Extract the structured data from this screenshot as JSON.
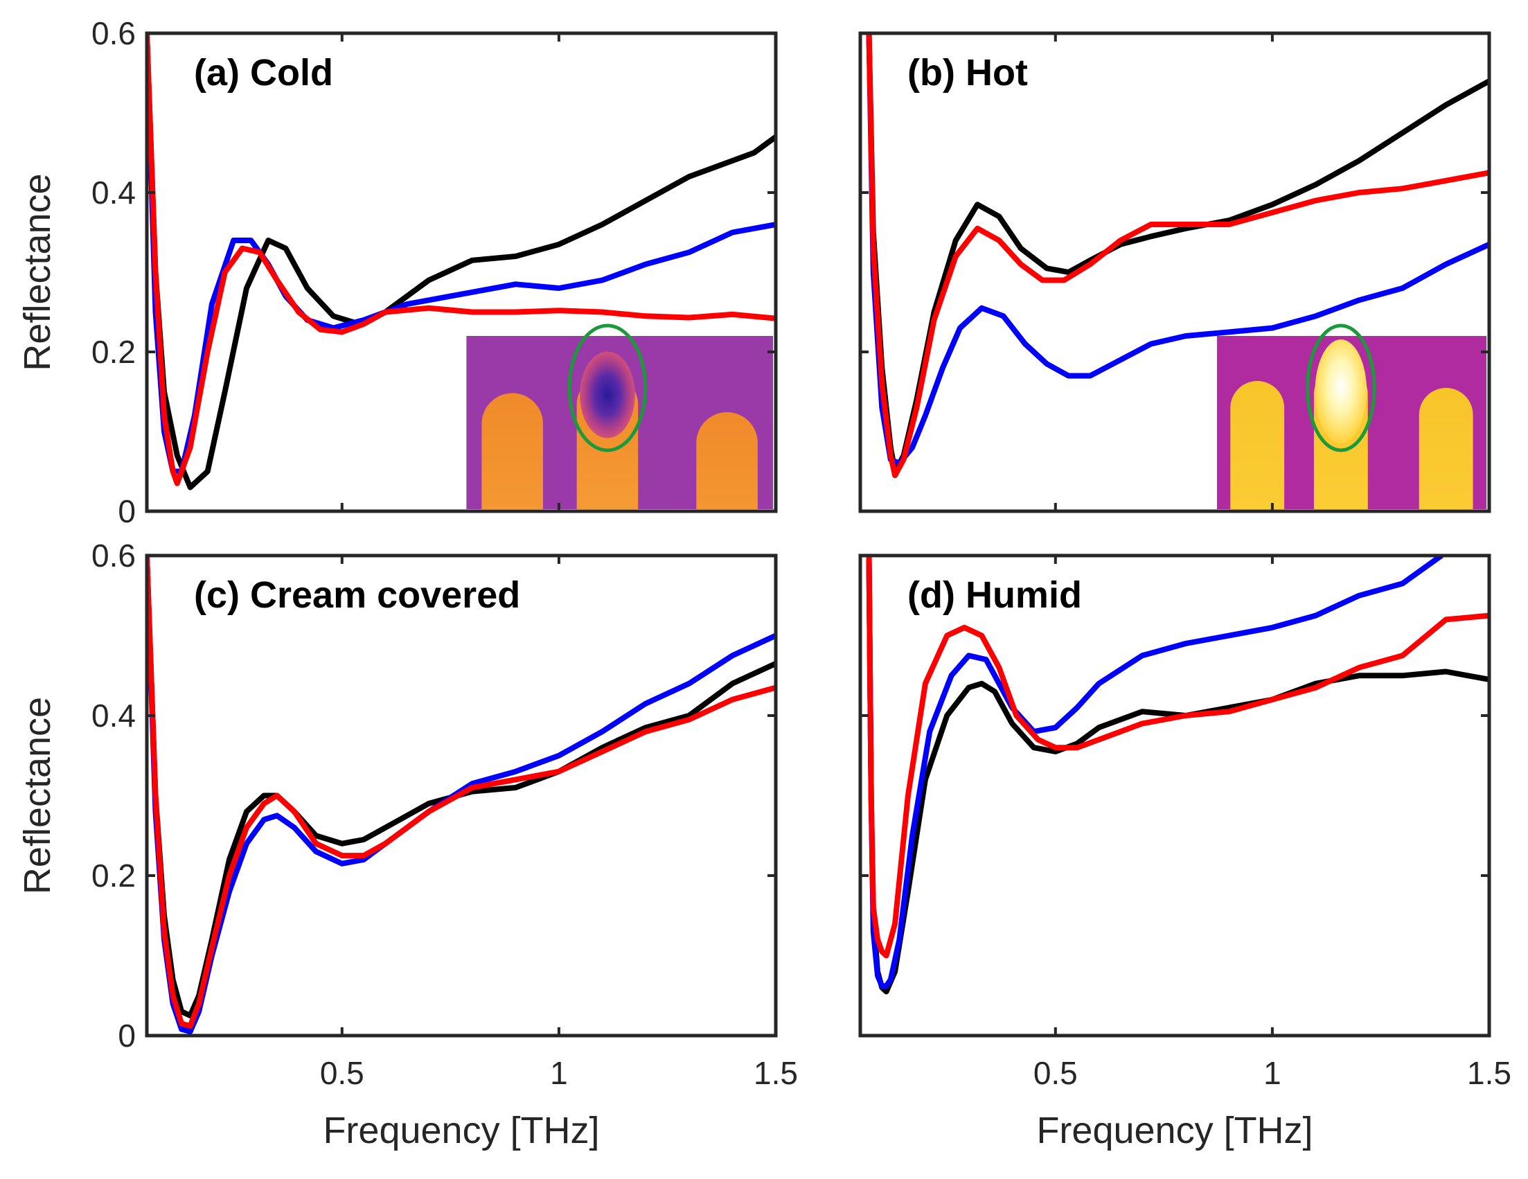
{
  "chart_data": [
    {
      "type": "line",
      "panel": "a",
      "title": "(a) Cold",
      "xlabel": "",
      "ylabel": "Reflectance",
      "xlim": [
        0.05,
        1.5
      ],
      "ylim": [
        0,
        0.6
      ],
      "xticks": [],
      "xtick_labels": [],
      "yticks": [
        0,
        0.2,
        0.4,
        0.6
      ],
      "ytick_labels": [
        "0",
        "0.2",
        "0.4",
        "0.6"
      ],
      "inset": "thermal image, cold fingertip",
      "series": [
        {
          "name": "black",
          "color": "#000000",
          "x": [
            0.05,
            0.07,
            0.09,
            0.12,
            0.15,
            0.19,
            0.23,
            0.28,
            0.33,
            0.37,
            0.42,
            0.48,
            0.54,
            0.6,
            0.7,
            0.8,
            0.9,
            1.0,
            1.1,
            1.2,
            1.3,
            1.4,
            1.45,
            1.5
          ],
          "y": [
            0.6,
            0.3,
            0.15,
            0.07,
            0.03,
            0.05,
            0.15,
            0.28,
            0.34,
            0.33,
            0.28,
            0.245,
            0.235,
            0.25,
            0.29,
            0.315,
            0.32,
            0.335,
            0.36,
            0.39,
            0.42,
            0.44,
            0.45,
            0.47
          ]
        },
        {
          "name": "blue",
          "color": "#0000ff",
          "x": [
            0.05,
            0.07,
            0.09,
            0.11,
            0.13,
            0.16,
            0.2,
            0.25,
            0.29,
            0.33,
            0.37,
            0.42,
            0.48,
            0.55,
            0.65,
            0.8,
            0.9,
            1.0,
            1.1,
            1.2,
            1.3,
            1.4,
            1.5
          ],
          "y": [
            0.6,
            0.25,
            0.1,
            0.05,
            0.05,
            0.12,
            0.26,
            0.34,
            0.34,
            0.31,
            0.27,
            0.24,
            0.23,
            0.24,
            0.26,
            0.275,
            0.285,
            0.28,
            0.29,
            0.31,
            0.325,
            0.35,
            0.36
          ]
        },
        {
          "name": "red",
          "color": "#ff0000",
          "x": [
            0.05,
            0.07,
            0.09,
            0.11,
            0.12,
            0.15,
            0.19,
            0.23,
            0.27,
            0.31,
            0.35,
            0.4,
            0.45,
            0.5,
            0.55,
            0.6,
            0.7,
            0.8,
            0.9,
            1.0,
            1.1,
            1.2,
            1.3,
            1.4,
            1.5
          ],
          "y": [
            0.6,
            0.3,
            0.12,
            0.05,
            0.035,
            0.08,
            0.2,
            0.3,
            0.33,
            0.325,
            0.29,
            0.25,
            0.228,
            0.225,
            0.235,
            0.25,
            0.255,
            0.25,
            0.25,
            0.252,
            0.25,
            0.245,
            0.243,
            0.247,
            0.242
          ]
        }
      ]
    },
    {
      "type": "line",
      "panel": "b",
      "title": "(b) Hot",
      "xlabel": "",
      "ylabel": "",
      "xlim": [
        0.05,
        1.5
      ],
      "ylim": [
        0,
        0.6
      ],
      "xticks": [],
      "xtick_labels": [],
      "yticks": [],
      "ytick_labels": [],
      "inset": "thermal image, hot fingertip",
      "series": [
        {
          "name": "black",
          "color": "#000000",
          "x": [
            0.07,
            0.08,
            0.1,
            0.12,
            0.13,
            0.15,
            0.18,
            0.22,
            0.27,
            0.32,
            0.37,
            0.42,
            0.48,
            0.53,
            0.58,
            0.65,
            0.72,
            0.8,
            0.9,
            1.0,
            1.1,
            1.2,
            1.3,
            1.4,
            1.5
          ],
          "y": [
            0.6,
            0.35,
            0.18,
            0.08,
            0.05,
            0.07,
            0.14,
            0.25,
            0.34,
            0.385,
            0.37,
            0.33,
            0.305,
            0.3,
            0.315,
            0.335,
            0.345,
            0.355,
            0.365,
            0.385,
            0.41,
            0.44,
            0.475,
            0.51,
            0.54
          ]
        },
        {
          "name": "blue",
          "color": "#0000ff",
          "x": [
            0.07,
            0.08,
            0.1,
            0.12,
            0.14,
            0.17,
            0.2,
            0.24,
            0.28,
            0.33,
            0.38,
            0.43,
            0.48,
            0.53,
            0.58,
            0.65,
            0.72,
            0.8,
            0.9,
            1.0,
            1.1,
            1.2,
            1.3,
            1.4,
            1.5
          ],
          "y": [
            0.6,
            0.3,
            0.13,
            0.065,
            0.06,
            0.08,
            0.12,
            0.18,
            0.23,
            0.255,
            0.245,
            0.21,
            0.185,
            0.17,
            0.17,
            0.19,
            0.21,
            0.22,
            0.225,
            0.23,
            0.245,
            0.265,
            0.28,
            0.31,
            0.335
          ]
        },
        {
          "name": "red",
          "color": "#ff0000",
          "x": [
            0.07,
            0.08,
            0.1,
            0.12,
            0.13,
            0.15,
            0.18,
            0.22,
            0.27,
            0.32,
            0.37,
            0.42,
            0.47,
            0.52,
            0.58,
            0.65,
            0.72,
            0.8,
            0.9,
            1.0,
            1.1,
            1.2,
            1.3,
            1.4,
            1.5
          ],
          "y": [
            0.6,
            0.33,
            0.16,
            0.07,
            0.045,
            0.065,
            0.13,
            0.24,
            0.32,
            0.355,
            0.34,
            0.31,
            0.29,
            0.29,
            0.31,
            0.34,
            0.36,
            0.36,
            0.36,
            0.375,
            0.39,
            0.4,
            0.405,
            0.415,
            0.425
          ]
        }
      ]
    },
    {
      "type": "line",
      "panel": "c",
      "title": "(c) Cream covered",
      "xlabel": "Frequency [THz]",
      "ylabel": "Reflectance",
      "xlim": [
        0.05,
        1.5
      ],
      "ylim": [
        0,
        0.6
      ],
      "xticks": [
        0.5,
        1,
        1.5
      ],
      "xtick_labels": [
        "0.5",
        "1",
        "1.5"
      ],
      "yticks": [
        0,
        0.2,
        0.4,
        0.6
      ],
      "ytick_labels": [
        "0",
        "0.2",
        "0.4",
        "0.6"
      ],
      "series": [
        {
          "name": "black",
          "color": "#000000",
          "x": [
            0.05,
            0.07,
            0.09,
            0.11,
            0.13,
            0.15,
            0.17,
            0.2,
            0.24,
            0.28,
            0.32,
            0.35,
            0.39,
            0.44,
            0.5,
            0.55,
            0.6,
            0.7,
            0.8,
            0.9,
            1.0,
            1.1,
            1.2,
            1.3,
            1.4,
            1.5
          ],
          "y": [
            0.6,
            0.3,
            0.15,
            0.07,
            0.03,
            0.025,
            0.05,
            0.12,
            0.22,
            0.28,
            0.3,
            0.3,
            0.28,
            0.25,
            0.24,
            0.245,
            0.26,
            0.29,
            0.305,
            0.31,
            0.33,
            0.36,
            0.385,
            0.4,
            0.44,
            0.465
          ]
        },
        {
          "name": "blue",
          "color": "#0000ff",
          "x": [
            0.05,
            0.07,
            0.09,
            0.11,
            0.13,
            0.15,
            0.17,
            0.2,
            0.24,
            0.28,
            0.32,
            0.35,
            0.39,
            0.44,
            0.5,
            0.55,
            0.6,
            0.7,
            0.8,
            0.9,
            1.0,
            1.1,
            1.2,
            1.3,
            1.4,
            1.5
          ],
          "y": [
            0.6,
            0.28,
            0.12,
            0.04,
            0.008,
            0.005,
            0.03,
            0.1,
            0.18,
            0.24,
            0.27,
            0.275,
            0.26,
            0.23,
            0.215,
            0.22,
            0.24,
            0.28,
            0.315,
            0.33,
            0.35,
            0.38,
            0.415,
            0.44,
            0.475,
            0.5
          ]
        },
        {
          "name": "red",
          "color": "#ff0000",
          "x": [
            0.05,
            0.07,
            0.09,
            0.11,
            0.13,
            0.15,
            0.17,
            0.2,
            0.24,
            0.28,
            0.32,
            0.35,
            0.39,
            0.44,
            0.5,
            0.55,
            0.6,
            0.7,
            0.8,
            0.9,
            1.0,
            1.1,
            1.2,
            1.3,
            1.4,
            1.5
          ],
          "y": [
            0.6,
            0.3,
            0.13,
            0.05,
            0.015,
            0.012,
            0.04,
            0.11,
            0.2,
            0.26,
            0.29,
            0.3,
            0.28,
            0.24,
            0.225,
            0.225,
            0.24,
            0.28,
            0.31,
            0.32,
            0.33,
            0.355,
            0.38,
            0.395,
            0.42,
            0.435
          ]
        }
      ]
    },
    {
      "type": "line",
      "panel": "d",
      "title": "(d) Humid",
      "xlabel": "Frequency [THz]",
      "ylabel": "",
      "xlim": [
        0.05,
        1.5
      ],
      "ylim": [
        0,
        0.6
      ],
      "xticks": [
        0.5,
        1,
        1.5
      ],
      "xtick_labels": [
        "0.5",
        "1",
        "1.5"
      ],
      "yticks": [],
      "ytick_labels": [],
      "series": [
        {
          "name": "black",
          "color": "#000000",
          "x": [
            0.07,
            0.075,
            0.08,
            0.09,
            0.1,
            0.11,
            0.13,
            0.16,
            0.2,
            0.25,
            0.3,
            0.33,
            0.36,
            0.4,
            0.45,
            0.5,
            0.55,
            0.6,
            0.7,
            0.8,
            0.9,
            1.0,
            1.1,
            1.2,
            1.3,
            1.4,
            1.5
          ],
          "y": [
            0.6,
            0.3,
            0.15,
            0.08,
            0.06,
            0.055,
            0.08,
            0.18,
            0.32,
            0.4,
            0.435,
            0.44,
            0.43,
            0.39,
            0.36,
            0.355,
            0.365,
            0.385,
            0.405,
            0.4,
            0.41,
            0.42,
            0.44,
            0.45,
            0.45,
            0.455,
            0.445
          ]
        },
        {
          "name": "blue",
          "color": "#0000ff",
          "x": [
            0.07,
            0.075,
            0.08,
            0.09,
            0.1,
            0.11,
            0.12,
            0.14,
            0.17,
            0.21,
            0.26,
            0.3,
            0.34,
            0.37,
            0.4,
            0.45,
            0.5,
            0.55,
            0.6,
            0.7,
            0.8,
            0.9,
            1.0,
            1.1,
            1.2,
            1.3,
            1.39
          ],
          "y": [
            0.6,
            0.3,
            0.13,
            0.075,
            0.062,
            0.062,
            0.07,
            0.12,
            0.25,
            0.38,
            0.45,
            0.475,
            0.47,
            0.44,
            0.41,
            0.38,
            0.385,
            0.41,
            0.44,
            0.475,
            0.49,
            0.5,
            0.51,
            0.525,
            0.55,
            0.565,
            0.6
          ]
        },
        {
          "name": "red",
          "color": "#ff0000",
          "x": [
            0.07,
            0.075,
            0.08,
            0.09,
            0.1,
            0.11,
            0.13,
            0.16,
            0.2,
            0.25,
            0.29,
            0.33,
            0.37,
            0.41,
            0.46,
            0.5,
            0.55,
            0.6,
            0.7,
            0.8,
            0.9,
            1.0,
            1.1,
            1.2,
            1.3,
            1.4,
            1.5
          ],
          "y": [
            0.6,
            0.3,
            0.16,
            0.12,
            0.105,
            0.1,
            0.14,
            0.3,
            0.44,
            0.5,
            0.51,
            0.5,
            0.46,
            0.4,
            0.37,
            0.36,
            0.36,
            0.37,
            0.39,
            0.4,
            0.405,
            0.42,
            0.435,
            0.46,
            0.475,
            0.52,
            0.525
          ]
        }
      ]
    }
  ]
}
